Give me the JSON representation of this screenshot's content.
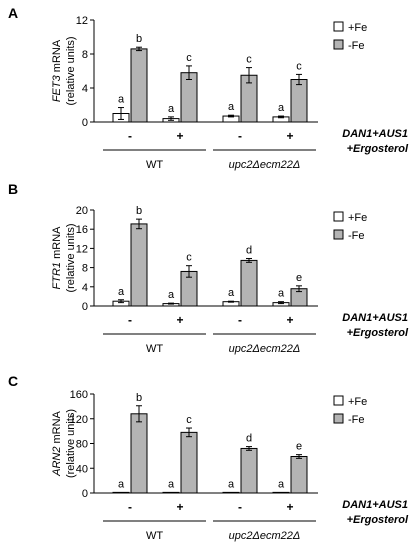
{
  "colors": {
    "plus_fe": "#ffffff",
    "minus_fe": "#b4b4b4",
    "stroke": "#000000"
  },
  "chart_data": [
    {
      "type": "bar",
      "panel": "A",
      "ylabel_gene": "FET3",
      "ylabel_rest": " mRNA",
      "ylabel_line2": "(relative units)",
      "yticks": [
        0,
        4,
        8,
        12
      ],
      "ylim": [
        0,
        12
      ],
      "categories": [
        "WT -",
        "WT +",
        "upc2Δecm22Δ -",
        "upc2Δecm22Δ +"
      ],
      "series": [
        {
          "name": "+Fe",
          "values": [
            1.0,
            0.4,
            0.7,
            0.6
          ],
          "errors": [
            0.7,
            0.2,
            0.1,
            0.1
          ],
          "letters": [
            "a",
            "a",
            "a",
            "a"
          ]
        },
        {
          "name": "-Fe",
          "values": [
            8.6,
            5.8,
            5.5,
            5.0
          ],
          "errors": [
            0.2,
            0.8,
            0.9,
            0.6
          ],
          "letters": [
            "b",
            "c",
            "c",
            "c"
          ]
        }
      ],
      "treatment_marks": [
        "-",
        "+",
        "-",
        "+"
      ],
      "groups": [
        {
          "label": "WT",
          "italic": false
        },
        {
          "label": "upc2Δecm22Δ",
          "italic": true
        }
      ],
      "treatment_label": [
        "DAN1+AUS1",
        "+Ergosterol"
      ],
      "legend": [
        "+Fe",
        "-Fe"
      ],
      "legend_position": "top-right"
    },
    {
      "type": "bar",
      "panel": "B",
      "ylabel_gene": "FTR1",
      "ylabel_rest": " mRNA",
      "ylabel_line2": "(relative units)",
      "yticks": [
        0,
        4,
        8,
        12,
        16,
        20
      ],
      "ylim": [
        0,
        20
      ],
      "categories": [
        "WT -",
        "WT +",
        "upc2Δecm22Δ -",
        "upc2Δecm22Δ +"
      ],
      "series": [
        {
          "name": "+Fe",
          "values": [
            1.0,
            0.5,
            0.9,
            0.7
          ],
          "errors": [
            0.3,
            0.1,
            0.1,
            0.2
          ],
          "letters": [
            "a",
            "a",
            "a",
            "a"
          ]
        },
        {
          "name": "-Fe",
          "values": [
            17.1,
            7.2,
            9.5,
            3.6
          ],
          "errors": [
            1.0,
            1.2,
            0.4,
            0.6
          ],
          "letters": [
            "b",
            "c",
            "d",
            "e"
          ]
        }
      ],
      "treatment_marks": [
        "-",
        "+",
        "-",
        "+"
      ],
      "groups": [
        {
          "label": "WT",
          "italic": false
        },
        {
          "label": "upc2Δecm22Δ",
          "italic": true
        }
      ],
      "treatment_label": [
        "DAN1+AUS1",
        "+Ergosterol"
      ],
      "legend": [
        "+Fe",
        "-Fe"
      ],
      "legend_position": "top-right"
    },
    {
      "type": "bar",
      "panel": "C",
      "ylabel_gene": "ARN2",
      "ylabel_rest": " mRNA",
      "ylabel_line2": "(relative units)",
      "yticks": [
        0,
        40,
        80,
        120,
        160
      ],
      "ylim": [
        0,
        160
      ],
      "categories": [
        "WT -",
        "WT +",
        "upc2Δecm22Δ -",
        "upc2Δecm22Δ +"
      ],
      "series": [
        {
          "name": "+Fe",
          "values": [
            1,
            1,
            1,
            1
          ],
          "errors": [
            0,
            0,
            0,
            0
          ],
          "letters": [
            "a",
            "a",
            "a",
            "a"
          ]
        },
        {
          "name": "-Fe",
          "values": [
            128,
            98,
            72,
            59
          ],
          "errors": [
            13,
            7,
            3,
            3
          ],
          "letters": [
            "b",
            "c",
            "d",
            "e"
          ]
        }
      ],
      "treatment_marks": [
        "-",
        "+",
        "-",
        "+"
      ],
      "groups": [
        {
          "label": "WT",
          "italic": false
        },
        {
          "label": "upc2Δecm22Δ",
          "italic": true
        }
      ],
      "treatment_label": [
        "DAN1+AUS1",
        "+Ergosterol"
      ],
      "legend": [
        "+Fe",
        "-Fe"
      ],
      "legend_position": "top-right"
    }
  ]
}
